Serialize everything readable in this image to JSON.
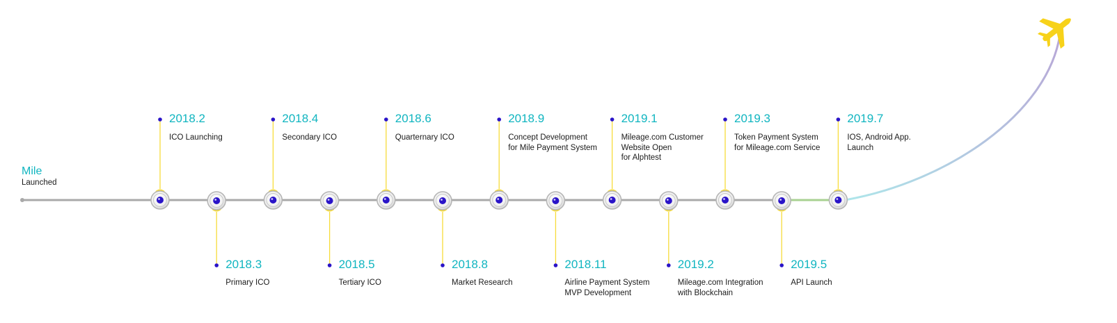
{
  "start": {
    "title": "Mile",
    "subtitle": "Launched"
  },
  "milestones": [
    {
      "date": "2018.2",
      "text": "ICO Launching",
      "side": "top"
    },
    {
      "date": "2018.3",
      "text": "Primary ICO",
      "side": "bottom"
    },
    {
      "date": "2018.4",
      "text": "Secondary ICO",
      "side": "top"
    },
    {
      "date": "2018.5",
      "text": "Tertiary ICO",
      "side": "bottom"
    },
    {
      "date": "2018.6",
      "text": "Quarternary ICO",
      "side": "top"
    },
    {
      "date": "2018.8",
      "text": "Market Research",
      "side": "bottom"
    },
    {
      "date": "2018.9",
      "text": "Concept Development\nfor Mile Payment System",
      "side": "top"
    },
    {
      "date": "2018.11",
      "text": "Airline Payment System\nMVP Development",
      "side": "bottom"
    },
    {
      "date": "2019.1",
      "text": "Mileage.com Customer\nWebsite Open\nfor Alphtest",
      "side": "top"
    },
    {
      "date": "2019.2",
      "text": "Mileage.com Integration\nwith Blockchain",
      "side": "bottom"
    },
    {
      "date": "2019.3",
      "text": "Token Payment System\nfor Mileage.com Service",
      "side": "top"
    },
    {
      "date": "2019.5",
      "text": "API Launch",
      "side": "bottom"
    },
    {
      "date": "2019.7",
      "text": "IOS, Android App.\nLaunch",
      "side": "top"
    }
  ],
  "colors": {
    "date": "#10b5c0",
    "connector": "#f7dc3a",
    "dot": "#2a14c8",
    "line": "#a9a9a9",
    "plane": "#f7d21a",
    "trail_start": "#aee6ea",
    "trail_end": "#b8a6d6"
  },
  "icons": {
    "end": "airplane-icon"
  }
}
